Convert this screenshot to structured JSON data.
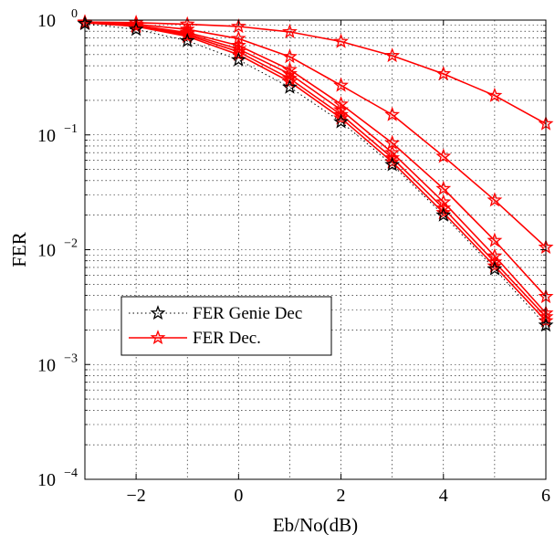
{
  "chart_data": {
    "type": "line",
    "title": "",
    "xlabel": "Eb/No(dB)",
    "ylabel": "FER",
    "xlim": [
      -3,
      6
    ],
    "ylim": [
      0.0001,
      1
    ],
    "yscale": "log",
    "grid": true,
    "legend_position": "center-left",
    "x_ticks": [
      -2,
      0,
      2,
      4,
      6
    ],
    "y_tick_exponents": [
      0,
      -1,
      -2,
      -3,
      -4
    ],
    "y_tick_base": "10",
    "legend": [
      {
        "label": "FER Genie Dec",
        "color": "#000000",
        "style": "dotted",
        "marker": "star-open"
      },
      {
        "label": "FER Dec.",
        "color": "#ff0000",
        "style": "solid",
        "marker": "star-filled"
      }
    ],
    "series": [
      {
        "group": "FER Genie Dec",
        "color": "#000000",
        "x": [
          -3,
          -2,
          -1,
          0,
          1,
          2,
          3,
          4,
          5,
          6
        ],
        "values": [
          0.93,
          0.83,
          0.66,
          0.45,
          0.26,
          0.13,
          0.055,
          0.02,
          0.0068,
          0.0022
        ]
      },
      {
        "group": "FER Dec.",
        "color": "#ff0000",
        "x": [
          -3,
          -2,
          -1,
          0,
          1,
          2,
          3,
          4,
          5,
          6
        ],
        "values": [
          0.95,
          0.88,
          0.72,
          0.5,
          0.29,
          0.14,
          0.058,
          0.021,
          0.0072,
          0.0024
        ]
      },
      {
        "group": "FER Dec.",
        "color": "#ff0000",
        "x": [
          -3,
          -2,
          -1,
          0,
          1,
          2,
          3,
          4,
          5,
          6
        ],
        "values": [
          0.95,
          0.89,
          0.74,
          0.53,
          0.31,
          0.15,
          0.063,
          0.023,
          0.0078,
          0.0026
        ]
      },
      {
        "group": "FER Dec.",
        "color": "#ff0000",
        "x": [
          -3,
          -2,
          -1,
          0,
          1,
          2,
          3,
          4,
          5,
          6
        ],
        "values": [
          0.95,
          0.9,
          0.76,
          0.56,
          0.34,
          0.165,
          0.07,
          0.026,
          0.0088,
          0.0028
        ]
      },
      {
        "group": "FER Dec.",
        "color": "#ff0000",
        "x": [
          -3,
          -2,
          -1,
          0,
          1,
          2,
          3,
          4,
          5,
          6
        ],
        "values": [
          0.95,
          0.9,
          0.78,
          0.6,
          0.37,
          0.185,
          0.085,
          0.034,
          0.012,
          0.0039
        ]
      },
      {
        "group": "FER Dec.",
        "color": "#ff0000",
        "x": [
          -3,
          -2,
          -1,
          0,
          1,
          2,
          3,
          4,
          5,
          6
        ],
        "values": [
          0.95,
          0.92,
          0.83,
          0.69,
          0.48,
          0.27,
          0.15,
          0.065,
          0.027,
          0.0105
        ]
      },
      {
        "group": "FER Dec.",
        "color": "#ff0000",
        "x": [
          -3,
          -2,
          -1,
          0,
          1,
          2,
          3,
          4,
          5,
          6
        ],
        "values": [
          0.96,
          0.95,
          0.92,
          0.88,
          0.79,
          0.65,
          0.49,
          0.34,
          0.22,
          0.125
        ]
      }
    ]
  }
}
